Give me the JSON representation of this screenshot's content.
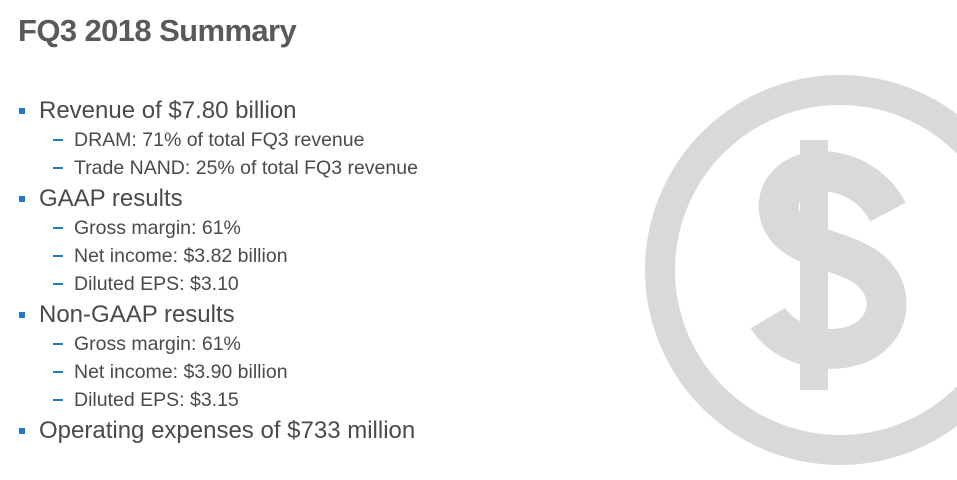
{
  "slide": {
    "title": "FQ3 2018 Summary",
    "graphic": {
      "icon": "dollar-circle-icon",
      "color": "#d9d9d9"
    },
    "bullets": [
      {
        "text": "Revenue of $7.80 billion",
        "sub": [
          "DRAM: 71% of total FQ3 revenue",
          "Trade NAND: 25% of total FQ3 revenue"
        ]
      },
      {
        "text": "GAAP results",
        "sub": [
          "Gross margin: 61%",
          "Net income: $3.82 billion",
          "Diluted EPS: $3.10"
        ]
      },
      {
        "text": "Non-GAAP results",
        "sub": [
          "Gross margin: 61%",
          "Net income: $3.90 billion",
          "Diluted EPS: $3.15"
        ]
      },
      {
        "text": "Operating expenses of $733 million",
        "sub": []
      }
    ],
    "colors": {
      "title": "#5a5a5a",
      "text": "#4a4a4a",
      "bullet": "#1f78c8"
    }
  }
}
